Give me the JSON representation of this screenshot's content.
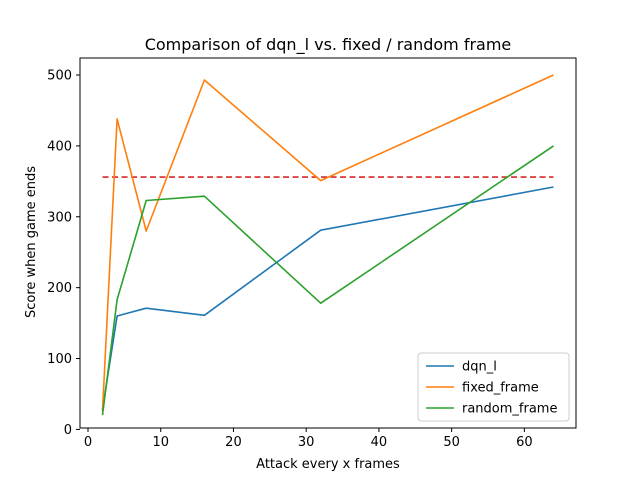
{
  "chart_data": {
    "type": "line",
    "title": "Comparison of dqn_l vs. fixed / random frame",
    "xlabel": "Attack every x frames",
    "ylabel": "Score when game ends",
    "xlim": [
      -1.1,
      67.1
    ],
    "ylim": [
      2,
      524
    ],
    "xticks": [
      0,
      10,
      20,
      30,
      40,
      50,
      60
    ],
    "yticks": [
      0,
      100,
      200,
      300,
      400,
      500
    ],
    "grid": false,
    "legend_position": "lower right",
    "series": [
      {
        "name": "dqn_l",
        "color": "#1f77b4",
        "x": [
          2,
          4,
          8,
          16,
          32,
          64
        ],
        "y": [
          28,
          160,
          171,
          161,
          281,
          342
        ]
      },
      {
        "name": "fixed_frame",
        "color": "#ff7f0e",
        "x": [
          2,
          4,
          8,
          16,
          32,
          64
        ],
        "y": [
          26,
          438,
          280,
          493,
          351,
          500
        ]
      },
      {
        "name": "random_frame",
        "color": "#2ca02c",
        "x": [
          2,
          4,
          8,
          16,
          32,
          64
        ],
        "y": [
          20,
          183,
          323,
          329,
          178,
          400
        ]
      }
    ],
    "reference_lines": [
      {
        "orientation": "horizontal",
        "y": 356,
        "x_range": [
          2,
          64
        ],
        "color": "#d62728",
        "style": "dashed"
      }
    ]
  }
}
